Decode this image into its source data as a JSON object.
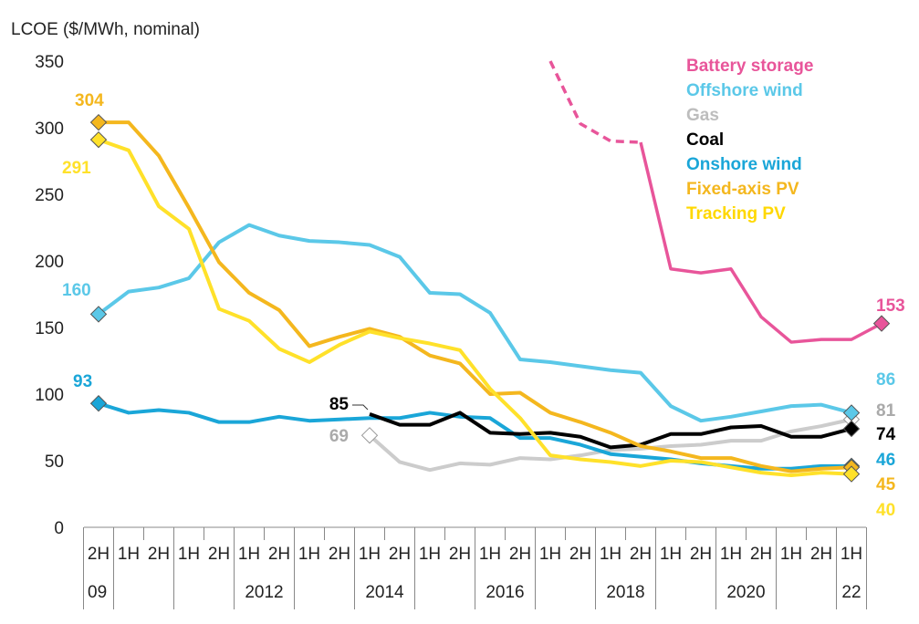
{
  "chart_data": {
    "type": "line",
    "title": "",
    "ylabel": "LCOE ($/MWh, nominal)",
    "xlabel": "",
    "ylim": [
      0,
      350
    ],
    "yticks": [
      0,
      50,
      100,
      150,
      200,
      250,
      300,
      350
    ],
    "grid": false,
    "legend_position": "top-right",
    "x_halves": [
      "2H",
      "1H",
      "2H",
      "1H",
      "2H",
      "1H",
      "2H",
      "1H",
      "2H",
      "1H",
      "2H",
      "1H",
      "2H",
      "1H",
      "2H",
      "1H",
      "2H",
      "1H",
      "2H",
      "1H",
      "2H",
      "1H",
      "2H",
      "1H",
      "2H",
      "1H"
    ],
    "x_years": [
      {
        "label": "09",
        "index": 0
      },
      {
        "label": "2012",
        "index": 5.5
      },
      {
        "label": "2014",
        "index": 9.5
      },
      {
        "label": "2016",
        "index": 13.5
      },
      {
        "label": "2018",
        "index": 17.5
      },
      {
        "label": "2020",
        "index": 21.5
      },
      {
        "label": "22",
        "index": 25
      }
    ],
    "series": [
      {
        "name": "Battery storage",
        "color": "#e8559a",
        "start": 15,
        "values": [
          350,
          303,
          290,
          289,
          194,
          191,
          194,
          158,
          139,
          141,
          141,
          153
        ],
        "dashed_until": 3,
        "end_label": "153"
      },
      {
        "name": "Offshore wind",
        "color": "#5bc8e8",
        "start": 0,
        "values": [
          160,
          177,
          180,
          187,
          214,
          227,
          219,
          215,
          214,
          212,
          203,
          176,
          175,
          161,
          126,
          124,
          121,
          118,
          116,
          91,
          80,
          83,
          87,
          91,
          92,
          86
        ],
        "start_label": "160",
        "end_label": "86"
      },
      {
        "name": "Gas",
        "color": "#cccccc",
        "start": 9,
        "values": [
          69,
          49,
          43,
          48,
          47,
          52,
          51,
          54,
          58,
          59,
          61,
          62,
          65,
          65,
          72,
          76,
          81
        ],
        "start_label": "69",
        "end_label": "81"
      },
      {
        "name": "Coal",
        "color": "#000000",
        "start": 9,
        "values": [
          85,
          77,
          77,
          86,
          71,
          70,
          71,
          68,
          60,
          62,
          70,
          70,
          75,
          76,
          68,
          68,
          74
        ],
        "start_label": "85",
        "end_label": "74"
      },
      {
        "name": "Onshore wind",
        "color": "#1aa6d8",
        "start": 0,
        "values": [
          93,
          86,
          88,
          86,
          79,
          79,
          83,
          80,
          81,
          82,
          82,
          86,
          83,
          82,
          67,
          67,
          62,
          55,
          53,
          51,
          48,
          46,
          44,
          44,
          46,
          46
        ],
        "start_label": "93",
        "end_label": "46"
      },
      {
        "name": "Fixed-axis PV",
        "color": "#f4b71e",
        "start": 0,
        "values": [
          304,
          304,
          279,
          240,
          199,
          176,
          163,
          136,
          143,
          149,
          143,
          129,
          123,
          100,
          101,
          86,
          79,
          71,
          61,
          57,
          52,
          52,
          46,
          42,
          44,
          45
        ],
        "start_label": "304",
        "end_label": "45"
      },
      {
        "name": "Tracking PV",
        "color": "#ffe12a",
        "start": 0,
        "values": [
          291,
          283,
          241,
          224,
          164,
          155,
          134,
          124,
          137,
          147,
          142,
          138,
          133,
          104,
          82,
          54,
          51,
          49,
          46,
          50,
          49,
          45,
          41,
          39,
          41,
          40
        ],
        "start_label": "291",
        "end_label": "40"
      }
    ]
  }
}
